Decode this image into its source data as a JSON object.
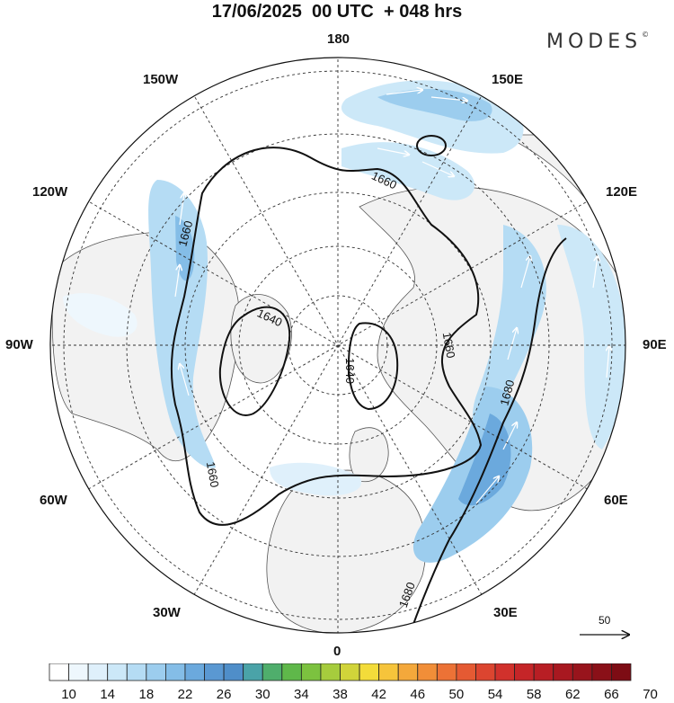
{
  "header": {
    "title": "17/06/2025  00 UTC  + 048 hrs",
    "brand": "MODES",
    "brand_mark": "©"
  },
  "map": {
    "projection": "north-polar-stereographic",
    "longitude_labels": {
      "top": "180",
      "upper_left": "150W",
      "upper_right": "150E",
      "left_upper": "120W",
      "right_upper": "120E",
      "left": "90W",
      "right": "90E",
      "left_lower": "60W",
      "right_lower": "60E",
      "lower_left": "30W",
      "lower_right": "30E",
      "bottom": "0"
    },
    "contours": [
      {
        "label": "1640",
        "value": 1640
      },
      {
        "label": "1640",
        "value": 1640
      },
      {
        "label": "1660",
        "value": 1660
      },
      {
        "label": "1660",
        "value": 1660
      },
      {
        "label": "1660",
        "value": 1660
      },
      {
        "label": "1660",
        "value": 1660
      },
      {
        "label": "1680",
        "value": 1680
      },
      {
        "label": "1680",
        "value": 1680
      }
    ],
    "reference_vector": {
      "label": "50",
      "value": 50
    }
  },
  "colorbar": {
    "labels": [
      "10",
      "14",
      "18",
      "22",
      "26",
      "30",
      "34",
      "38",
      "42",
      "46",
      "50",
      "54",
      "58",
      "62",
      "66",
      "70"
    ],
    "colors": [
      "#ffffff",
      "#eef7fd",
      "#dff0fb",
      "#cce8f8",
      "#b5dcf4",
      "#9ccdee",
      "#84bde7",
      "#6ba9dd",
      "#5a98d2",
      "#4f8ec9",
      "#4aa3a8",
      "#4fae6c",
      "#5fb84a",
      "#7cc23f",
      "#a6cc3d",
      "#d1d43a",
      "#f3dc3a",
      "#f6c43b",
      "#f4a83b",
      "#f18e38",
      "#ec7236",
      "#e55a33",
      "#dc4530",
      "#d1312c",
      "#c52528",
      "#b81e24",
      "#a81820",
      "#98141c",
      "#8a1018",
      "#7d0c14"
    ]
  }
}
